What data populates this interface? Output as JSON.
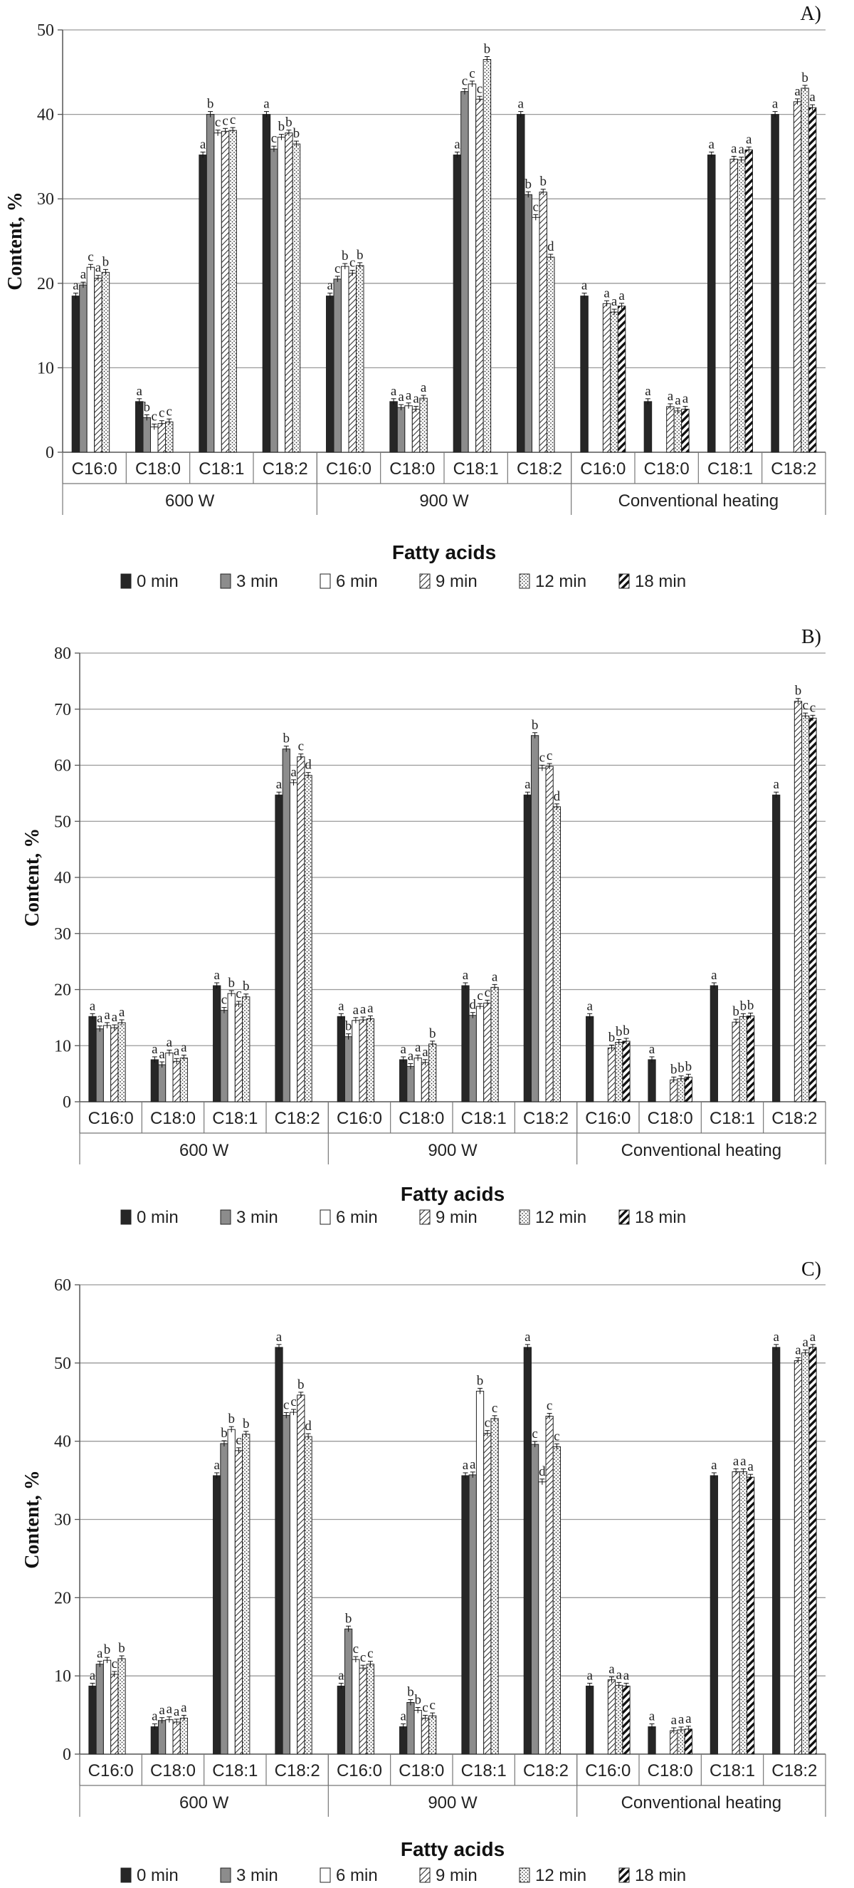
{
  "series_names": [
    "0 min",
    "3 min",
    "6 min",
    "9 min",
    "12 min",
    "18 min"
  ],
  "chart_data": [
    {
      "type": "bar",
      "panel_label": "A)",
      "ylabel": "Content, %",
      "xlabel": "Fatty acids",
      "ylim": [
        0,
        50
      ],
      "ytick_step": 10,
      "grid": true,
      "legend": "bottom",
      "groups": [
        "600 W",
        "900 W",
        "Conventional heating"
      ],
      "categories": [
        "C16:0",
        "C18:0",
        "C18:1",
        "C18:2"
      ],
      "series": [
        {
          "name": "0 min",
          "values": [
            [
              18.5,
              6.0,
              35.2,
              40.0
            ],
            [
              18.5,
              6.0,
              35.2,
              40.0
            ],
            [
              18.5,
              6.0,
              35.2,
              40.0
            ]
          ],
          "letters": [
            [
              "a",
              "a",
              "a",
              "a"
            ],
            [
              "a",
              "a",
              "a",
              "a"
            ],
            [
              "a",
              "a",
              "a",
              "a"
            ]
          ]
        },
        {
          "name": "3 min",
          "values": [
            [
              19.8,
              4.1,
              40.0,
              35.9
            ],
            [
              20.5,
              5.3,
              42.7,
              30.5
            ],
            [
              null,
              null,
              null,
              null
            ]
          ],
          "letters": [
            [
              "a",
              "b",
              "b",
              "c"
            ],
            [
              "c",
              "a",
              "c",
              "b"
            ],
            [
              "",
              "",
              "",
              ""
            ]
          ]
        },
        {
          "name": "6 min",
          "values": [
            [
              21.9,
              3.0,
              37.8,
              37.3
            ],
            [
              22.0,
              5.5,
              43.6,
              27.8
            ],
            [
              null,
              null,
              null,
              null
            ]
          ],
          "letters": [
            [
              "c",
              "c",
              "c",
              "b"
            ],
            [
              "b",
              "a",
              "c",
              "c"
            ],
            [
              "",
              "",
              "",
              ""
            ]
          ]
        },
        {
          "name": "9 min",
          "values": [
            [
              20.6,
              3.4,
              38.0,
              37.8
            ],
            [
              21.2,
              5.1,
              41.8,
              30.8
            ],
            [
              17.6,
              5.4,
              34.7,
              41.5
            ]
          ],
          "letters": [
            [
              "a",
              "c",
              "c",
              "b"
            ],
            [
              "c",
              "a",
              "c",
              "b"
            ],
            [
              "a",
              "a",
              "a",
              "a"
            ]
          ]
        },
        {
          "name": "12 min",
          "values": [
            [
              21.3,
              3.6,
              38.1,
              36.5
            ],
            [
              22.1,
              6.4,
              46.5,
              23.1
            ],
            [
              16.6,
              4.9,
              34.6,
              43.1
            ]
          ],
          "letters": [
            [
              "b",
              "c",
              "c",
              "b"
            ],
            [
              "b",
              "a",
              "b",
              "d"
            ],
            [
              "a",
              "a",
              "a",
              "b"
            ]
          ]
        },
        {
          "name": "18 min",
          "values": [
            [
              null,
              null,
              null,
              null
            ],
            [
              null,
              null,
              null,
              null
            ],
            [
              17.3,
              5.1,
              35.8,
              40.8
            ]
          ],
          "letters": [
            [
              "",
              "",
              "",
              ""
            ],
            [
              "",
              "",
              "",
              ""
            ],
            [
              "a",
              "a",
              "a",
              "a"
            ]
          ]
        }
      ]
    },
    {
      "type": "bar",
      "panel_label": "B)",
      "ylabel": "Content, %",
      "xlabel": "Fatty acids",
      "ylim": [
        0,
        80
      ],
      "ytick_step": 10,
      "grid": true,
      "legend": "bottom",
      "groups": [
        "600 W",
        "900 W",
        "Conventional heating"
      ],
      "categories": [
        "C16:0",
        "C18:0",
        "C18:1",
        "C18:2"
      ],
      "series": [
        {
          "name": "0 min",
          "values": [
            [
              15.2,
              7.5,
              20.7,
              54.7
            ],
            [
              15.2,
              7.5,
              20.7,
              54.7
            ],
            [
              15.2,
              7.5,
              20.7,
              54.7
            ]
          ],
          "letters": [
            [
              "a",
              "a",
              "a",
              "a"
            ],
            [
              "a",
              "a",
              "a",
              "a"
            ],
            [
              "a",
              "a",
              "a",
              "a"
            ]
          ]
        },
        {
          "name": "3 min",
          "values": [
            [
              13.0,
              6.6,
              16.3,
              62.9
            ],
            [
              11.6,
              6.3,
              15.4,
              65.3
            ],
            [
              null,
              null,
              null,
              null
            ]
          ],
          "letters": [
            [
              "a",
              "a",
              "c",
              "b"
            ],
            [
              "b",
              "a",
              "d",
              "b"
            ],
            [
              "",
              "",
              "",
              ""
            ]
          ]
        },
        {
          "name": "6 min",
          "values": [
            [
              13.6,
              8.7,
              19.3,
              56.9
            ],
            [
              14.5,
              7.8,
              17.0,
              59.5
            ],
            [
              null,
              null,
              null,
              null
            ]
          ],
          "letters": [
            [
              "a",
              "a",
              "b",
              "a"
            ],
            [
              "a",
              "a",
              "c",
              "c"
            ],
            [
              "",
              "",
              "",
              ""
            ]
          ]
        },
        {
          "name": "9 min",
          "values": [
            [
              13.2,
              7.2,
              17.4,
              61.5
            ],
            [
              14.6,
              7.0,
              17.6,
              59.8
            ],
            [
              9.6,
              3.9,
              14.2,
              71.4
            ]
          ],
          "letters": [
            [
              "a",
              "a",
              "c",
              "c"
            ],
            [
              "a",
              "a",
              "c",
              "c"
            ],
            [
              "b",
              "b",
              "b",
              "b"
            ]
          ]
        },
        {
          "name": "12 min",
          "values": [
            [
              14.1,
              7.8,
              18.7,
              58.2
            ],
            [
              14.8,
              10.3,
              20.4,
              52.6
            ],
            [
              10.6,
              4.1,
              15.2,
              68.8
            ]
          ],
          "letters": [
            [
              "a",
              "a",
              "b",
              "d"
            ],
            [
              "a",
              "b",
              "a",
              "d"
            ],
            [
              "b",
              "b",
              "b",
              "c"
            ]
          ]
        },
        {
          "name": "18 min",
          "values": [
            [
              null,
              null,
              null,
              null
            ],
            [
              null,
              null,
              null,
              null
            ],
            [
              10.8,
              4.4,
              15.3,
              68.4
            ]
          ],
          "letters": [
            [
              "",
              "",
              "",
              ""
            ],
            [
              "",
              "",
              "",
              ""
            ],
            [
              "b",
              "b",
              "b",
              "c"
            ]
          ]
        }
      ]
    },
    {
      "type": "bar",
      "panel_label": "C)",
      "ylabel": "Content, %",
      "xlabel": "Fatty acids",
      "ylim": [
        0,
        60
      ],
      "ytick_step": 10,
      "grid": true,
      "legend": "bottom",
      "groups": [
        "600 W",
        "900 W",
        "Conventional heating"
      ],
      "categories": [
        "C16:0",
        "C18:0",
        "C18:1",
        "C18:2"
      ],
      "series": [
        {
          "name": "0 min",
          "values": [
            [
              8.7,
              3.5,
              35.6,
              52.0
            ],
            [
              8.7,
              3.5,
              35.6,
              52.0
            ],
            [
              8.7,
              3.5,
              35.6,
              52.0
            ]
          ],
          "letters": [
            [
              "a",
              "a",
              "a",
              "a"
            ],
            [
              "a",
              "a",
              "a",
              "a"
            ],
            [
              "a",
              "a",
              "a",
              "a"
            ]
          ]
        },
        {
          "name": "3 min",
          "values": [
            [
              11.5,
              4.3,
              39.7,
              43.3
            ],
            [
              16.0,
              6.6,
              35.7,
              39.6
            ],
            [
              null,
              null,
              null,
              null
            ]
          ],
          "letters": [
            [
              "a",
              "a",
              "b",
              "c"
            ],
            [
              "b",
              "b",
              "a",
              "c"
            ],
            [
              "",
              "",
              "",
              ""
            ]
          ]
        },
        {
          "name": "6 min",
          "values": [
            [
              12.0,
              4.4,
              41.5,
              43.7
            ],
            [
              12.1,
              5.6,
              46.4,
              34.8
            ],
            [
              null,
              null,
              null,
              null
            ]
          ],
          "letters": [
            [
              "b",
              "a",
              "b",
              "c"
            ],
            [
              "c",
              "b",
              "b",
              "d"
            ],
            [
              "",
              "",
              "",
              ""
            ]
          ]
        },
        {
          "name": "9 min",
          "values": [
            [
              10.2,
              4.1,
              38.8,
              45.9
            ],
            [
              11.0,
              4.6,
              41.0,
              43.2
            ],
            [
              9.5,
              3.0,
              36.1,
              50.3
            ]
          ],
          "letters": [
            [
              "c",
              "a",
              "c",
              "b"
            ],
            [
              "c",
              "c",
              "c",
              "c"
            ],
            [
              "a",
              "a",
              "a",
              "a"
            ]
          ]
        },
        {
          "name": "12 min",
          "values": [
            [
              12.2,
              4.6,
              40.9,
              40.6
            ],
            [
              11.5,
              4.9,
              42.9,
              39.3
            ],
            [
              8.8,
              3.1,
              36.1,
              51.3
            ]
          ],
          "letters": [
            [
              "b",
              "a",
              "b",
              "d"
            ],
            [
              "c",
              "c",
              "c",
              "c"
            ],
            [
              "a",
              "a",
              "a",
              "a"
            ]
          ]
        },
        {
          "name": "18 min",
          "values": [
            [
              null,
              null,
              null,
              null
            ],
            [
              null,
              null,
              null,
              null
            ],
            [
              8.7,
              3.2,
              35.4,
              52.0
            ]
          ],
          "letters": [
            [
              "",
              "",
              "",
              ""
            ],
            [
              "",
              "",
              "",
              ""
            ],
            [
              "a",
              "a",
              "a",
              "a"
            ]
          ]
        }
      ]
    }
  ]
}
